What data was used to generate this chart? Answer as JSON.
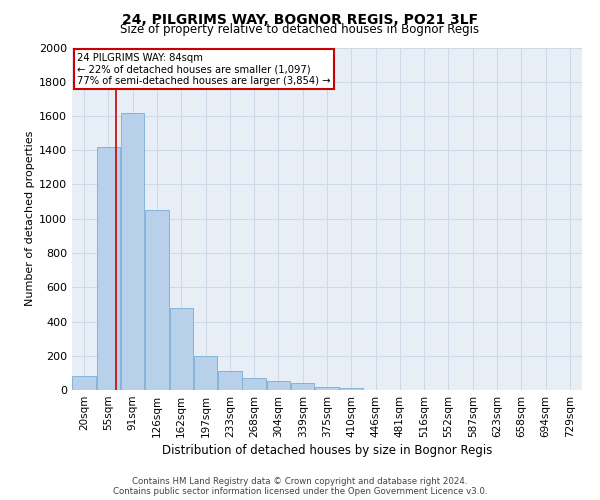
{
  "title_line1": "24, PILGRIMS WAY, BOGNOR REGIS, PO21 3LF",
  "title_line2": "Size of property relative to detached houses in Bognor Regis",
  "xlabel": "Distribution of detached houses by size in Bognor Regis",
  "ylabel": "Number of detached properties",
  "footer_line1": "Contains HM Land Registry data © Crown copyright and database right 2024.",
  "footer_line2": "Contains public sector information licensed under the Open Government Licence v3.0.",
  "categories": [
    "20sqm",
    "55sqm",
    "91sqm",
    "126sqm",
    "162sqm",
    "197sqm",
    "233sqm",
    "268sqm",
    "304sqm",
    "339sqm",
    "375sqm",
    "410sqm",
    "446sqm",
    "481sqm",
    "516sqm",
    "552sqm",
    "587sqm",
    "623sqm",
    "658sqm",
    "694sqm",
    "729sqm"
  ],
  "values": [
    80,
    1420,
    1620,
    1050,
    480,
    200,
    110,
    70,
    50,
    40,
    20,
    10,
    0,
    0,
    0,
    0,
    0,
    0,
    0,
    0,
    0
  ],
  "bar_color": "#b8d0ea",
  "bar_edge_color": "#7aaed6",
  "property_line_label": "24 PILGRIMS WAY: 84sqm",
  "annotation_smaller": "← 22% of detached houses are smaller (1,097)",
  "annotation_larger": "77% of semi-detached houses are larger (3,854) →",
  "annotation_box_color": "#ffffff",
  "annotation_box_edge": "#cc0000",
  "ylim": [
    0,
    2000
  ],
  "yticks": [
    0,
    200,
    400,
    600,
    800,
    1000,
    1200,
    1400,
    1600,
    1800,
    2000
  ],
  "grid_color": "#cdd8e8",
  "background_color": "#e8eef6"
}
